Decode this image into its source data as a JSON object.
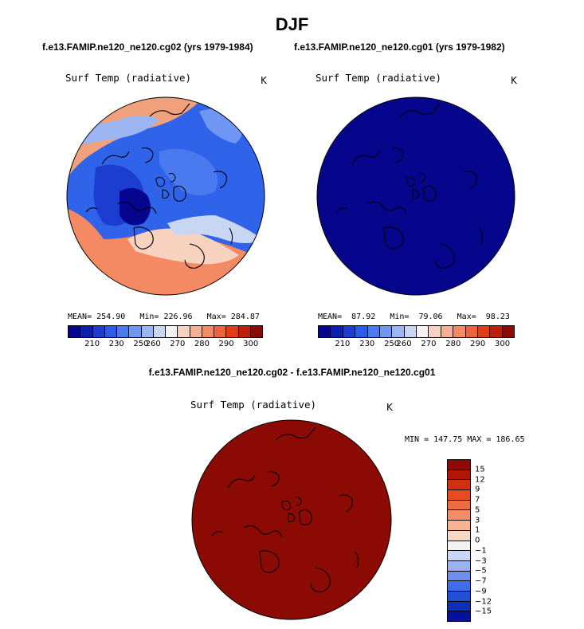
{
  "title": "DJF",
  "panels": [
    {
      "case_title": "f.e13.FAMIP.ne120_ne120.cg02 (yrs 1979-1984)",
      "variable": "Surf Temp (radiative)",
      "units": "K",
      "stats": {
        "mean": "254.90",
        "min": "226.96",
        "max": "284.87"
      }
    },
    {
      "case_title": "f.e13.FAMIP.ne120_ne120.cg01 (yrs 1979-1982)",
      "variable": "Surf Temp (radiative)",
      "units": "K",
      "stats": {
        "mean": "87.92",
        "min": "79.06",
        "max": "98.23"
      }
    }
  ],
  "stats_labels": {
    "mean": "MEAN=",
    "min": "Min=",
    "max": "Max="
  },
  "diff_panel": {
    "title": "f.e13.FAMIP.ne120_ne120.cg02 - f.e13.FAMIP.ne120_ne120.cg01",
    "variable": "Surf Temp (radiative)",
    "units": "K",
    "minmax_text": "MIN = 147.75 MAX = 186.65"
  },
  "chart_data": [
    {
      "type": "heatmap",
      "projection": "north polar stereographic",
      "title": "f.e13.FAMIP.ne120_ne120.cg02 (yrs 1979-1984)",
      "variable": "Surf Temp (radiative)",
      "units": "K",
      "mean": 254.9,
      "min": 226.96,
      "max": 284.87,
      "colorbar": {
        "orientation": "horizontal",
        "tick_labels": [
          "210",
          "230",
          "250",
          "260",
          "270",
          "280",
          "290",
          "300"
        ],
        "colors": [
          "#05058e",
          "#0b1fb0",
          "#1c3ed0",
          "#2a5bea",
          "#4a79f0",
          "#6f96f2",
          "#9bb6f2",
          "#c6d6f3",
          "#f2f2f2",
          "#f7d2bf",
          "#f5b093",
          "#f48a63",
          "#f0623b",
          "#e33b17",
          "#c01d0a",
          "#8c0a04"
        ]
      },
      "field_description": "Blue over Arctic Ocean, Greenland and Siberia; orange-red over N. Atlantic and lower latitudes"
    },
    {
      "type": "heatmap",
      "projection": "north polar stereographic",
      "title": "f.e13.FAMIP.ne120_ne120.cg01 (yrs 1979-1982)",
      "variable": "Surf Temp (radiative)",
      "units": "K",
      "mean": 87.92,
      "min": 79.06,
      "max": 98.23,
      "colorbar": {
        "orientation": "horizontal",
        "tick_labels": [
          "210",
          "230",
          "250",
          "260",
          "270",
          "280",
          "290",
          "300"
        ],
        "colors": [
          "#05058e",
          "#0b1fb0",
          "#1c3ed0",
          "#2a5bea",
          "#4a79f0",
          "#6f96f2",
          "#9bb6f2",
          "#c6d6f3",
          "#f2f2f2",
          "#f7d2bf",
          "#f5b093",
          "#f48a63",
          "#f0623b",
          "#e33b17",
          "#c01d0a",
          "#8c0a04"
        ]
      },
      "field_description": "Uniform darkest blue (below colorbar range)"
    },
    {
      "type": "heatmap",
      "projection": "north polar stereographic",
      "title": "f.e13.FAMIP.ne120_ne120.cg02 - f.e13.FAMIP.ne120_ne120.cg01",
      "variable": "Surf Temp (radiative)",
      "units": "K",
      "min": 147.75,
      "max": 186.65,
      "colorbar": {
        "orientation": "vertical",
        "tick_labels": [
          "15",
          "12",
          "9",
          "7",
          "5",
          "3",
          "1",
          "0",
          "−1",
          "−3",
          "−5",
          "−7",
          "−9",
          "−12",
          "−15"
        ],
        "colors": [
          "#8c0a04",
          "#b11508",
          "#d2300e",
          "#ea4a1f",
          "#f26a3f",
          "#f58d66",
          "#f8b394",
          "#fbd8c6",
          "#f2f2f2",
          "#c8d7f3",
          "#9ab3f0",
          "#6a90ec",
          "#3f6ee6",
          "#2050d8",
          "#0f2fba",
          "#06119a"
        ]
      },
      "field_description": "Uniform darkest red (above colorbar range)"
    }
  ],
  "colors": {
    "outline": "#000000",
    "panel1_ocean_cold": "#2a5bea",
    "panel2_fill": "#06068d",
    "diff_fill": "#8c0a04"
  }
}
